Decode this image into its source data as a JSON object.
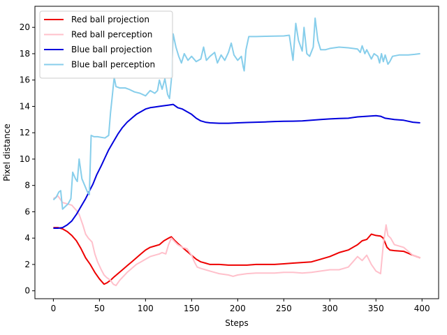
{
  "chart_data": {
    "type": "line",
    "title": "",
    "xlabel": "Steps",
    "ylabel": "Pixel distance",
    "xlim": [
      -20,
      418
    ],
    "ylim": [
      -0.6,
      21.6
    ],
    "xticks": [
      0,
      50,
      100,
      150,
      200,
      250,
      300,
      350,
      400
    ],
    "yticks": [
      0,
      2,
      4,
      6,
      8,
      10,
      12,
      14,
      16,
      18,
      20
    ],
    "grid": false,
    "legend_position": "upper-left",
    "series": [
      {
        "name": "Red ball projection",
        "color": "#ee0000",
        "points": [
          [
            0,
            4.8
          ],
          [
            5,
            4.8
          ],
          [
            10,
            4.7
          ],
          [
            15,
            4.5
          ],
          [
            20,
            4.2
          ],
          [
            25,
            3.8
          ],
          [
            30,
            3.2
          ],
          [
            35,
            2.5
          ],
          [
            40,
            2.0
          ],
          [
            45,
            1.4
          ],
          [
            50,
            0.9
          ],
          [
            55,
            0.5
          ],
          [
            58,
            0.6
          ],
          [
            62,
            0.8
          ],
          [
            65,
            1.0
          ],
          [
            70,
            1.3
          ],
          [
            75,
            1.6
          ],
          [
            80,
            1.9
          ],
          [
            85,
            2.2
          ],
          [
            90,
            2.5
          ],
          [
            95,
            2.8
          ],
          [
            100,
            3.1
          ],
          [
            105,
            3.3
          ],
          [
            110,
            3.4
          ],
          [
            115,
            3.5
          ],
          [
            120,
            3.8
          ],
          [
            125,
            4.0
          ],
          [
            128,
            4.1
          ],
          [
            132,
            3.8
          ],
          [
            135,
            3.6
          ],
          [
            140,
            3.3
          ],
          [
            145,
            3.0
          ],
          [
            150,
            2.7
          ],
          [
            155,
            2.4
          ],
          [
            160,
            2.2
          ],
          [
            165,
            2.1
          ],
          [
            170,
            2.0
          ],
          [
            180,
            2.0
          ],
          [
            190,
            1.95
          ],
          [
            200,
            1.95
          ],
          [
            210,
            1.95
          ],
          [
            220,
            2.0
          ],
          [
            230,
            2.0
          ],
          [
            240,
            2.0
          ],
          [
            250,
            2.05
          ],
          [
            260,
            2.1
          ],
          [
            270,
            2.15
          ],
          [
            280,
            2.2
          ],
          [
            290,
            2.4
          ],
          [
            300,
            2.6
          ],
          [
            310,
            2.9
          ],
          [
            320,
            3.1
          ],
          [
            330,
            3.5
          ],
          [
            335,
            3.8
          ],
          [
            340,
            3.9
          ],
          [
            345,
            4.3
          ],
          [
            350,
            4.2
          ],
          [
            355,
            4.15
          ],
          [
            358,
            4.0
          ],
          [
            362,
            3.3
          ],
          [
            365,
            3.1
          ],
          [
            370,
            3.05
          ],
          [
            380,
            3.0
          ],
          [
            390,
            2.7
          ],
          [
            398,
            2.5
          ]
        ]
      },
      {
        "name": "Red ball perception",
        "color": "#ffc0cb",
        "points": [
          [
            0,
            7.0
          ],
          [
            5,
            7.2
          ],
          [
            10,
            6.7
          ],
          [
            15,
            6.6
          ],
          [
            20,
            6.5
          ],
          [
            25,
            6.1
          ],
          [
            28,
            5.8
          ],
          [
            32,
            5.0
          ],
          [
            35,
            4.3
          ],
          [
            38,
            4.0
          ],
          [
            42,
            3.7
          ],
          [
            45,
            2.8
          ],
          [
            48,
            2.2
          ],
          [
            52,
            1.6
          ],
          [
            55,
            1.2
          ],
          [
            58,
            1.0
          ],
          [
            62,
            0.8
          ],
          [
            65,
            0.5
          ],
          [
            68,
            0.4
          ],
          [
            72,
            0.8
          ],
          [
            76,
            1.1
          ],
          [
            80,
            1.4
          ],
          [
            85,
            1.7
          ],
          [
            90,
            2.0
          ],
          [
            95,
            2.2
          ],
          [
            100,
            2.4
          ],
          [
            105,
            2.6
          ],
          [
            110,
            2.7
          ],
          [
            115,
            2.8
          ],
          [
            118,
            2.9
          ],
          [
            122,
            2.8
          ],
          [
            125,
            3.5
          ],
          [
            128,
            4.0
          ],
          [
            132,
            3.7
          ],
          [
            135,
            3.5
          ],
          [
            140,
            3.3
          ],
          [
            145,
            3.2
          ],
          [
            150,
            2.7
          ],
          [
            153,
            2.2
          ],
          [
            156,
            1.8
          ],
          [
            160,
            1.7
          ],
          [
            165,
            1.6
          ],
          [
            170,
            1.5
          ],
          [
            175,
            1.4
          ],
          [
            180,
            1.3
          ],
          [
            190,
            1.2
          ],
          [
            195,
            1.1
          ],
          [
            200,
            1.2
          ],
          [
            210,
            1.3
          ],
          [
            220,
            1.35
          ],
          [
            230,
            1.35
          ],
          [
            240,
            1.35
          ],
          [
            250,
            1.4
          ],
          [
            260,
            1.4
          ],
          [
            270,
            1.35
          ],
          [
            280,
            1.4
          ],
          [
            290,
            1.5
          ],
          [
            300,
            1.6
          ],
          [
            310,
            1.6
          ],
          [
            320,
            1.8
          ],
          [
            325,
            2.2
          ],
          [
            330,
            2.6
          ],
          [
            335,
            2.3
          ],
          [
            340,
            2.7
          ],
          [
            345,
            2.0
          ],
          [
            350,
            1.5
          ],
          [
            355,
            1.3
          ],
          [
            358,
            3.5
          ],
          [
            361,
            5.0
          ],
          [
            363,
            4.2
          ],
          [
            366,
            4.0
          ],
          [
            370,
            3.5
          ],
          [
            380,
            3.3
          ],
          [
            390,
            2.7
          ],
          [
            398,
            2.5
          ]
        ]
      },
      {
        "name": "Blue ball projection",
        "color": "#0000dd",
        "points": [
          [
            0,
            4.75
          ],
          [
            5,
            4.75
          ],
          [
            10,
            4.8
          ],
          [
            15,
            5.0
          ],
          [
            20,
            5.3
          ],
          [
            25,
            5.8
          ],
          [
            30,
            6.4
          ],
          [
            35,
            7.0
          ],
          [
            40,
            7.7
          ],
          [
            43,
            8.1
          ],
          [
            47,
            8.8
          ],
          [
            52,
            9.5
          ],
          [
            56,
            10.1
          ],
          [
            60,
            10.7
          ],
          [
            65,
            11.3
          ],
          [
            70,
            11.9
          ],
          [
            75,
            12.4
          ],
          [
            80,
            12.8
          ],
          [
            85,
            13.1
          ],
          [
            90,
            13.4
          ],
          [
            95,
            13.6
          ],
          [
            100,
            13.8
          ],
          [
            105,
            13.9
          ],
          [
            110,
            13.95
          ],
          [
            115,
            14.0
          ],
          [
            120,
            14.05
          ],
          [
            125,
            14.1
          ],
          [
            130,
            14.15
          ],
          [
            135,
            13.9
          ],
          [
            140,
            13.8
          ],
          [
            145,
            13.6
          ],
          [
            150,
            13.4
          ],
          [
            155,
            13.1
          ],
          [
            160,
            12.9
          ],
          [
            165,
            12.8
          ],
          [
            170,
            12.75
          ],
          [
            180,
            12.72
          ],
          [
            190,
            12.72
          ],
          [
            200,
            12.75
          ],
          [
            210,
            12.78
          ],
          [
            220,
            12.8
          ],
          [
            230,
            12.82
          ],
          [
            240,
            12.85
          ],
          [
            250,
            12.87
          ],
          [
            260,
            12.88
          ],
          [
            270,
            12.9
          ],
          [
            280,
            12.95
          ],
          [
            290,
            13.0
          ],
          [
            300,
            13.05
          ],
          [
            310,
            13.08
          ],
          [
            320,
            13.1
          ],
          [
            330,
            13.2
          ],
          [
            340,
            13.25
          ],
          [
            350,
            13.3
          ],
          [
            355,
            13.25
          ],
          [
            360,
            13.1
          ],
          [
            370,
            13.0
          ],
          [
            380,
            12.95
          ],
          [
            390,
            12.8
          ],
          [
            398,
            12.75
          ]
        ]
      },
      {
        "name": "Blue ball perception",
        "color": "#87ceeb",
        "points": [
          [
            0,
            6.9
          ],
          [
            3,
            7.1
          ],
          [
            6,
            7.5
          ],
          [
            8,
            7.6
          ],
          [
            10,
            6.2
          ],
          [
            13,
            6.4
          ],
          [
            16,
            6.6
          ],
          [
            19,
            7.0
          ],
          [
            21,
            9.0
          ],
          [
            24,
            8.5
          ],
          [
            26,
            8.3
          ],
          [
            28,
            10.0
          ],
          [
            31,
            8.5
          ],
          [
            34,
            8.0
          ],
          [
            37,
            7.5
          ],
          [
            39,
            7.3
          ],
          [
            41,
            11.8
          ],
          [
            44,
            11.7
          ],
          [
            48,
            11.7
          ],
          [
            52,
            11.65
          ],
          [
            56,
            11.6
          ],
          [
            60,
            11.8
          ],
          [
            62,
            13.5
          ],
          [
            64,
            14.8
          ],
          [
            66,
            16.2
          ],
          [
            68,
            15.5
          ],
          [
            72,
            15.4
          ],
          [
            78,
            15.4
          ],
          [
            82,
            15.3
          ],
          [
            88,
            15.1
          ],
          [
            94,
            15.0
          ],
          [
            100,
            14.8
          ],
          [
            105,
            15.2
          ],
          [
            110,
            15.0
          ],
          [
            113,
            15.2
          ],
          [
            115,
            16.0
          ],
          [
            118,
            15.3
          ],
          [
            121,
            16.1
          ],
          [
            124,
            14.9
          ],
          [
            126,
            14.6
          ],
          [
            128,
            16.0
          ],
          [
            130,
            19.5
          ],
          [
            133,
            18.5
          ],
          [
            136,
            17.8
          ],
          [
            139,
            17.3
          ],
          [
            142,
            18.0
          ],
          [
            146,
            17.5
          ],
          [
            150,
            17.8
          ],
          [
            155,
            17.4
          ],
          [
            160,
            17.6
          ],
          [
            163,
            18.5
          ],
          [
            166,
            17.5
          ],
          [
            170,
            17.8
          ],
          [
            175,
            18.1
          ],
          [
            178,
            17.3
          ],
          [
            182,
            17.9
          ],
          [
            186,
            17.5
          ],
          [
            190,
            18.1
          ],
          [
            193,
            18.8
          ],
          [
            196,
            17.9
          ],
          [
            200,
            17.5
          ],
          [
            204,
            17.8
          ],
          [
            206,
            17.0
          ],
          [
            207,
            16.7
          ],
          [
            209,
            18.3
          ],
          [
            212,
            19.3
          ],
          [
            220,
            19.3
          ],
          [
            230,
            19.32
          ],
          [
            240,
            19.33
          ],
          [
            250,
            19.35
          ],
          [
            256,
            19.4
          ],
          [
            260,
            17.5
          ],
          [
            263,
            20.3
          ],
          [
            266,
            19.0
          ],
          [
            270,
            18.2
          ],
          [
            272,
            20.0
          ],
          [
            275,
            18.0
          ],
          [
            278,
            17.8
          ],
          [
            282,
            18.5
          ],
          [
            284,
            20.7
          ],
          [
            287,
            19.0
          ],
          [
            290,
            18.3
          ],
          [
            295,
            18.3
          ],
          [
            300,
            18.4
          ],
          [
            310,
            18.5
          ],
          [
            320,
            18.45
          ],
          [
            325,
            18.4
          ],
          [
            330,
            18.35
          ],
          [
            333,
            18.1
          ],
          [
            335,
            18.6
          ],
          [
            338,
            18.0
          ],
          [
            340,
            18.3
          ],
          [
            345,
            17.6
          ],
          [
            348,
            18.0
          ],
          [
            352,
            17.8
          ],
          [
            354,
            17.3
          ],
          [
            356,
            18.0
          ],
          [
            358,
            17.4
          ],
          [
            360,
            17.9
          ],
          [
            363,
            17.2
          ],
          [
            365,
            17.4
          ],
          [
            368,
            17.8
          ],
          [
            375,
            17.9
          ],
          [
            385,
            17.9
          ],
          [
            392,
            17.95
          ],
          [
            398,
            18.0
          ]
        ]
      }
    ]
  }
}
